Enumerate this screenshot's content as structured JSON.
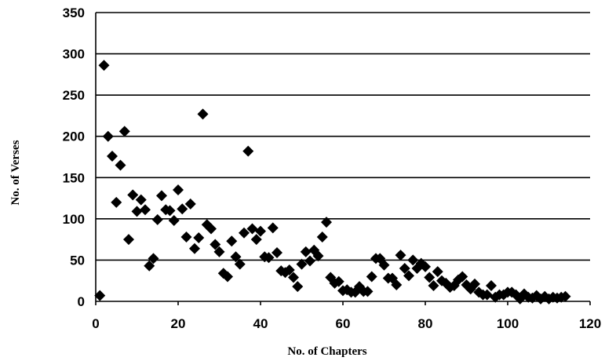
{
  "chart_data": {
    "type": "scatter",
    "title": "",
    "xlabel": "No. of Chapters",
    "ylabel": "No. of Verses",
    "xlim": [
      0,
      120
    ],
    "ylim": [
      0,
      350
    ],
    "xticks": [
      0,
      20,
      40,
      60,
      80,
      100,
      120
    ],
    "yticks": [
      0,
      50,
      100,
      150,
      200,
      250,
      300,
      350
    ],
    "grid": "horizontal",
    "legend": "none",
    "marker": "diamond",
    "marker_color": "#000000",
    "series": [
      {
        "x": [
          1,
          2,
          3,
          4,
          5,
          6,
          7,
          8,
          9,
          10,
          11,
          12,
          13,
          14,
          15,
          16,
          17,
          18,
          19,
          20,
          21,
          22,
          23,
          24,
          25,
          26,
          27,
          28,
          29,
          30,
          31,
          32,
          33,
          34,
          35,
          36,
          37,
          38,
          39,
          40,
          41,
          42,
          43,
          44,
          45,
          46,
          47,
          48,
          49,
          50,
          51,
          52,
          53,
          54,
          55,
          56,
          57,
          58,
          59,
          60,
          61,
          62,
          63,
          64,
          65,
          66,
          67,
          68,
          69,
          70,
          71,
          72,
          73,
          74,
          75,
          76,
          77,
          78,
          79,
          80,
          81,
          82,
          83,
          84,
          85,
          86,
          87,
          88,
          89,
          90,
          91,
          92,
          93,
          94,
          95,
          96,
          97,
          98,
          99,
          100,
          101,
          102,
          103,
          104,
          105,
          106,
          107,
          108,
          109,
          110,
          111,
          112,
          113,
          114
        ],
        "y": [
          7,
          286,
          200,
          176,
          120,
          165,
          206,
          75,
          129,
          109,
          123,
          111,
          43,
          52,
          99,
          128,
          111,
          110,
          98,
          135,
          112,
          78,
          118,
          64,
          77,
          227,
          93,
          88,
          69,
          60,
          34,
          30,
          73,
          54,
          45,
          83,
          182,
          88,
          75,
          85,
          54,
          53,
          89,
          59,
          37,
          35,
          38,
          29,
          18,
          45,
          60,
          49,
          62,
          55,
          78,
          96,
          29,
          22,
          24,
          13,
          14,
          11,
          11,
          18,
          12,
          12,
          30,
          52,
          52,
          44,
          28,
          28,
          20,
          56,
          40,
          31,
          50,
          40,
          46,
          42,
          29,
          19,
          36,
          25,
          22,
          17,
          19,
          26,
          30,
          20,
          15,
          21,
          11,
          8,
          8,
          19,
          5,
          8,
          8,
          11,
          11,
          8,
          3,
          9,
          5,
          4,
          7,
          3,
          6,
          3,
          5,
          4,
          5,
          6
        ]
      }
    ]
  }
}
